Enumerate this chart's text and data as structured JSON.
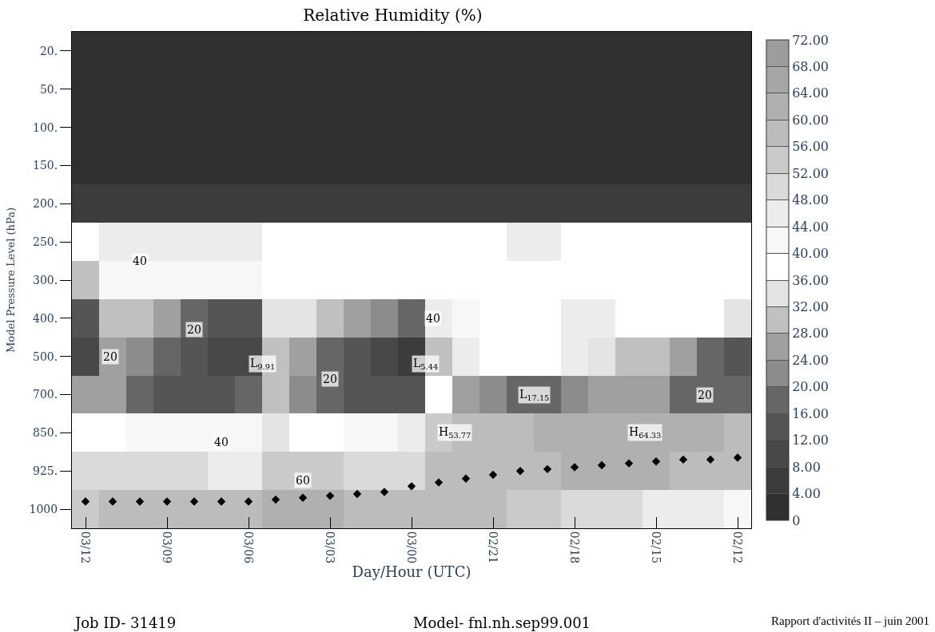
{
  "chart_data": {
    "type": "heatmap",
    "title": "Relative Humidity (%)",
    "xlabel": "Day/Hour (UTC)",
    "ylabel": "Model Pressure Level (hPa)",
    "categories": [
      "03/12",
      null,
      null,
      "03/09",
      null,
      null,
      "03/06",
      null,
      null,
      "03/03",
      null,
      null,
      "03/00",
      null,
      null,
      "02/21",
      null,
      null,
      "02/18",
      null,
      null,
      "02/15",
      null,
      null,
      "02/12"
    ],
    "y_categories": [
      "20.",
      "50.",
      "100.",
      "150.",
      "200.",
      "250.",
      "300.",
      "400.",
      "500.",
      "700.",
      "850.",
      "925.",
      "1000"
    ],
    "cells": [
      [
        2,
        2,
        2,
        2,
        2,
        2,
        2,
        2,
        2,
        2,
        2,
        2,
        2,
        2,
        2,
        2,
        2,
        2,
        2,
        2,
        2,
        2,
        2,
        2,
        2
      ],
      [
        2,
        2,
        2,
        2,
        2,
        2,
        2,
        2,
        2,
        2,
        2,
        2,
        2,
        2,
        2,
        2,
        2,
        2,
        2,
        2,
        2,
        2,
        2,
        2,
        2
      ],
      [
        2,
        2,
        2,
        2,
        2,
        2,
        2,
        2,
        2,
        2,
        2,
        2,
        2,
        2,
        2,
        2,
        2,
        2,
        2,
        2,
        2,
        2,
        2,
        2,
        2
      ],
      [
        2,
        2,
        2,
        2,
        2,
        2,
        2,
        2,
        2,
        2,
        2,
        2,
        2,
        2,
        2,
        2,
        2,
        2,
        2,
        2,
        2,
        2,
        2,
        2,
        2
      ],
      [
        6,
        6,
        6,
        6,
        6,
        6,
        6,
        6,
        6,
        6,
        6,
        6,
        6,
        6,
        6,
        6,
        6,
        6,
        6,
        6,
        6,
        6,
        6,
        6,
        6
      ],
      [
        38,
        46,
        46,
        46,
        46,
        46,
        46,
        38,
        38,
        38,
        38,
        38,
        38,
        38,
        38,
        38,
        46,
        46,
        38,
        38,
        38,
        38,
        38,
        38,
        38
      ],
      [
        30,
        42,
        42,
        42,
        42,
        42,
        42,
        38,
        38,
        38,
        38,
        38,
        38,
        38,
        38,
        38,
        38,
        38,
        38,
        38,
        38,
        38,
        38,
        38,
        38
      ],
      [
        14,
        30,
        30,
        26,
        18,
        14,
        14,
        34,
        34,
        30,
        26,
        22,
        18,
        46,
        42,
        38,
        38,
        38,
        46,
        46,
        38,
        38,
        38,
        38,
        34
      ],
      [
        10,
        26,
        22,
        18,
        14,
        10,
        10,
        30,
        26,
        18,
        14,
        10,
        6,
        30,
        46,
        38,
        38,
        38,
        46,
        34,
        30,
        30,
        26,
        18,
        14
      ],
      [
        26,
        26,
        18,
        14,
        14,
        14,
        18,
        30,
        22,
        18,
        14,
        14,
        14,
        38,
        26,
        22,
        18,
        18,
        22,
        26,
        26,
        26,
        18,
        18,
        18
      ],
      [
        38,
        38,
        42,
        42,
        42,
        42,
        42,
        34,
        38,
        38,
        42,
        42,
        46,
        54,
        58,
        58,
        58,
        62,
        62,
        62,
        62,
        62,
        62,
        62,
        58
      ],
      [
        50,
        50,
        50,
        50,
        50,
        46,
        46,
        54,
        54,
        54,
        50,
        50,
        50,
        58,
        58,
        58,
        58,
        58,
        62,
        62,
        62,
        62,
        58,
        58,
        58
      ],
      [
        54,
        58,
        58,
        58,
        58,
        58,
        58,
        62,
        62,
        62,
        58,
        58,
        58,
        58,
        58,
        58,
        54,
        54,
        50,
        50,
        50,
        46,
        46,
        46,
        42
      ]
    ],
    "clim": [
      0,
      72
    ],
    "cticks": [
      {
        "value": 0,
        "label": "0"
      },
      {
        "value": 4,
        "label": "4.00"
      },
      {
        "value": 8,
        "label": "8.00"
      },
      {
        "value": 12,
        "label": "12.00"
      },
      {
        "value": 16,
        "label": "16.00"
      },
      {
        "value": 20,
        "label": "20.00"
      },
      {
        "value": 24,
        "label": "24.00"
      },
      {
        "value": 28,
        "label": "28.00"
      },
      {
        "value": 32,
        "label": "32.00"
      },
      {
        "value": 36,
        "label": "36.00"
      },
      {
        "value": 40,
        "label": "40.00"
      },
      {
        "value": 44,
        "label": "44.00"
      },
      {
        "value": 48,
        "label": "48.00"
      },
      {
        "value": 52,
        "label": "52.00"
      },
      {
        "value": 56,
        "label": "56.00"
      },
      {
        "value": 60,
        "label": "60.00"
      },
      {
        "value": 64,
        "label": "64.00"
      },
      {
        "value": 68,
        "label": "68.00"
      },
      {
        "value": 72,
        "label": "72.00"
      }
    ],
    "colors": [
      "#303030",
      "#3c3c3c",
      "#484848",
      "#555555",
      "#666666",
      "#8c8c8c",
      "#a0a0a0",
      "#c0c0c0",
      "#e4e4e4",
      "#ffffff",
      "#f7f7f7",
      "#ececec",
      "#dadada",
      "#cacaca",
      "#bcbcbc",
      "#b0b0b0",
      "#a6a6a6",
      "#9c9c9c"
    ],
    "series": [
      {
        "type": "scatter",
        "color": "#000000",
        "values": [
          11.8,
          11.8,
          11.8,
          11.8,
          11.8,
          11.8,
          11.8,
          11.75,
          11.7,
          11.65,
          11.6,
          11.55,
          11.4,
          11.3,
          11.2,
          11.1,
          11.0,
          10.95,
          10.9,
          10.85,
          10.8,
          10.75,
          10.7,
          10.7,
          10.65
        ]
      }
    ],
    "marker": "diamond",
    "annotations": [
      "40",
      "20",
      "20",
      "L$_{9.91}$",
      "20",
      "L$_{5.44}$",
      "40",
      "L$_{17.15}$",
      "20",
      "H$_{53.77}$",
      "H$_{64.33}$",
      "40",
      "60",
      "Job ID- 31419",
      "Model- fnl.nh.sep99.001",
      "Rapport d'activités II – juin 2001"
    ]
  }
}
